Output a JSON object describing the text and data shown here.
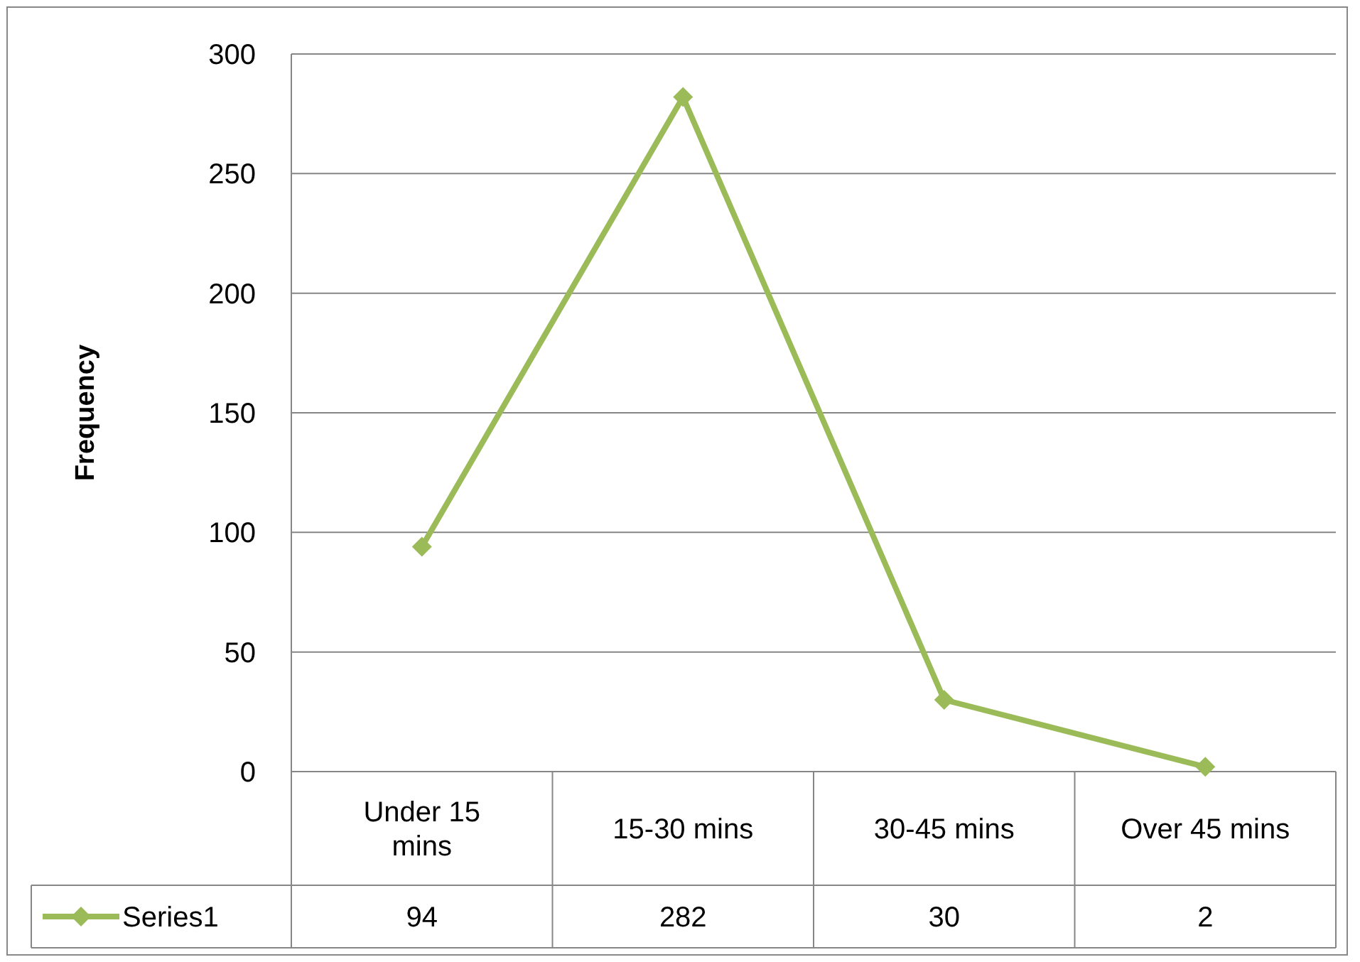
{
  "chart_data": {
    "type": "line",
    "ylabel": "Frequency",
    "categories": [
      "Under 15 mins",
      "15-30 mins",
      "30-45 mins",
      "Over 45 mins"
    ],
    "series": [
      {
        "name": "Series1",
        "color": "#9bbb59",
        "values": [
          94,
          282,
          30,
          2
        ]
      }
    ],
    "ylim": [
      0,
      300
    ],
    "yticks": [
      0,
      50,
      100,
      150,
      200,
      250,
      300
    ],
    "grid": "y",
    "marker": "diamond",
    "line_style": "solid",
    "legend": "bottom",
    "data_labels": true
  }
}
